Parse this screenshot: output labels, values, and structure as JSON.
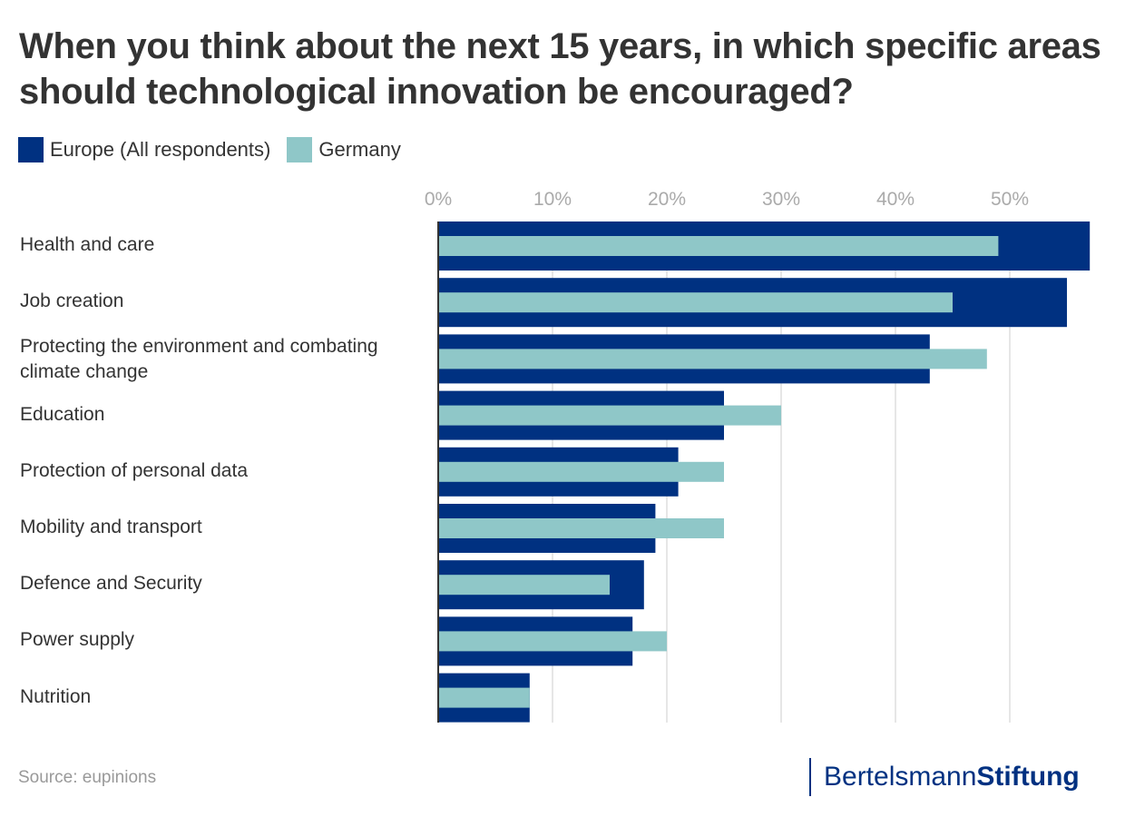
{
  "title": "When you think about the next 15 years, in which specific areas should technological innovation be encouraged?",
  "source": "Source: eupinions",
  "brand": {
    "part1": "Bertelsmann",
    "part2": "Stiftung",
    "color": "#003181"
  },
  "chart_data": {
    "type": "bar",
    "orientation": "horizontal",
    "title": "When you think about the next 15 years, in which specific areas should technological innovation be encouraged?",
    "xlabel": "",
    "ylabel": "",
    "xlim": [
      0,
      57
    ],
    "x_ticks": [
      "0%",
      "10%",
      "20%",
      "30%",
      "40%",
      "50%"
    ],
    "x_tick_values": [
      0,
      10,
      20,
      30,
      40,
      50
    ],
    "grid": true,
    "legend_position": "top-left",
    "categories": [
      "Health and care",
      "Job creation",
      "Protecting the environment and combating climate change",
      "Education",
      "Protection of personal data",
      "Mobility and transport",
      "Defence and Security",
      "Power supply",
      "Nutrition"
    ],
    "series": [
      {
        "name": "Europe (All respondents)",
        "color": "#003181",
        "values": [
          57,
          55,
          43,
          25,
          21,
          19,
          18,
          17,
          8
        ]
      },
      {
        "name": "Germany",
        "color": "#8fc7c8",
        "values": [
          49,
          45,
          48,
          30,
          25,
          25,
          15,
          20,
          8
        ]
      }
    ]
  }
}
